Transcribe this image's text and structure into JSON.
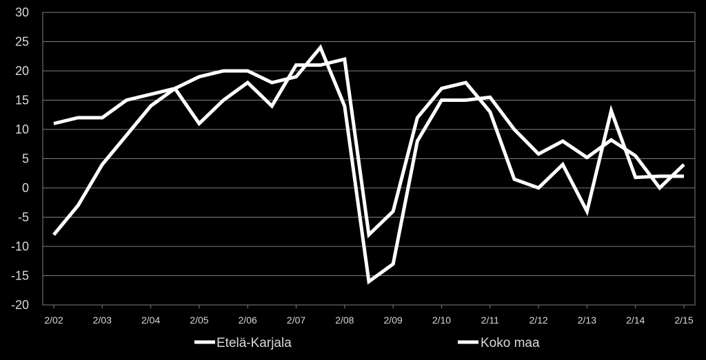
{
  "chart_data": {
    "type": "line",
    "x_labels": [
      "2/02",
      "2/03",
      "2/04",
      "2/05",
      "2/06",
      "2/07",
      "2/08",
      "2/09",
      "2/10",
      "2/11",
      "2/12",
      "2/13",
      "2/14",
      "2/15"
    ],
    "x": [
      "2/02",
      "8/02",
      "2/03",
      "8/03",
      "2/04",
      "8/04",
      "2/05",
      "8/05",
      "2/06",
      "8/06",
      "2/07",
      "8/07",
      "2/08",
      "8/08",
      "2/09",
      "8/09",
      "2/10",
      "8/10",
      "2/11",
      "8/11",
      "2/12",
      "8/12",
      "2/13",
      "8/13",
      "2/14",
      "8/14",
      "2/15"
    ],
    "ylim": [
      -20,
      30
    ],
    "yticks": [
      30,
      25,
      20,
      15,
      10,
      5,
      0,
      -5,
      -10,
      -15,
      -20
    ],
    "grid": true,
    "legend_position": "bottom",
    "series": [
      {
        "name": "Etelä-Karjala",
        "color": "#ffffff",
        "values": [
          -8,
          -3,
          4,
          9,
          14,
          17,
          11,
          15,
          18,
          14,
          21,
          21,
          22,
          -8,
          -4,
          12,
          17,
          18,
          13,
          1.5,
          0,
          4,
          -4,
          13.2,
          1.8,
          2,
          2
        ]
      },
      {
        "name": "Koko maa",
        "color": "#ffffff",
        "values": [
          11,
          12,
          12,
          15,
          16,
          17,
          19,
          20,
          20,
          18,
          19,
          24,
          14,
          -16,
          -13,
          8,
          15,
          15,
          15.5,
          10,
          5.8,
          8,
          5.2,
          8.2,
          5.5,
          0,
          4
        ]
      }
    ]
  }
}
